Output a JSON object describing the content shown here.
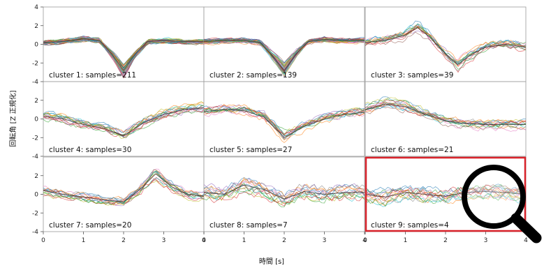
{
  "chart_data": {
    "type": "line",
    "layout": "3x3 grid of panels with shared axes",
    "xlabel": "時間 [s]",
    "ylabel": "回転角 [Z 正規化]",
    "xlim": [
      0,
      4
    ],
    "ylim": [
      -4,
      4
    ],
    "xticks": [
      "0",
      "1",
      "2",
      "3",
      "4"
    ],
    "yticks": [
      "-4",
      "-2",
      "0",
      "2",
      "4"
    ],
    "highlighted_panel": 9,
    "highlight_color": "#d9232b",
    "magnifier_icon": "magnifier-icon",
    "series_colors": [
      "#1f77b4",
      "#ff7f0e",
      "#2ca02c",
      "#d62728",
      "#9467bd",
      "#8c564b",
      "#e377c2",
      "#7f7f7f",
      "#bcbd22",
      "#17becf"
    ],
    "panels": [
      {
        "label": "cluster 1: samples=211",
        "mean": {
          "x": [
            0,
            0.5,
            1,
            1.4,
            1.7,
            2,
            2.3,
            2.6,
            3,
            3.5,
            4
          ],
          "y": [
            0.2,
            0.3,
            0.6,
            0.4,
            -1.0,
            -2.8,
            -1.0,
            0.3,
            0.4,
            0.3,
            0.3
          ]
        }
      },
      {
        "label": "cluster 2: samples=139",
        "mean": {
          "x": [
            0,
            0.5,
            1,
            1.4,
            1.7,
            2,
            2.3,
            2.6,
            3,
            3.5,
            4
          ],
          "y": [
            0.3,
            0.4,
            0.4,
            0.2,
            -1.2,
            -2.8,
            -1.0,
            0.3,
            0.5,
            0.4,
            0.4
          ]
        }
      },
      {
        "label": "cluster 3: samples=39",
        "mean": {
          "x": [
            0,
            0.5,
            1,
            1.3,
            1.6,
            2,
            2.3,
            2.6,
            3,
            3.5,
            4
          ],
          "y": [
            0.2,
            0.4,
            1.0,
            1.8,
            0.8,
            -1.0,
            -2.2,
            -1.2,
            -0.3,
            0.0,
            -0.3
          ]
        }
      },
      {
        "label": "cluster 4: samples=30",
        "mean": {
          "x": [
            0,
            0.5,
            1,
            1.5,
            2,
            2.5,
            3,
            3.5,
            4
          ],
          "y": [
            0.3,
            0.0,
            -0.6,
            -1.0,
            -1.8,
            -0.4,
            0.5,
            1.0,
            1.2
          ]
        }
      },
      {
        "label": "cluster 5: samples=27",
        "mean": {
          "x": [
            0,
            0.5,
            1,
            1.5,
            2,
            2.5,
            3,
            3.5,
            4
          ],
          "y": [
            0.8,
            1.0,
            0.9,
            0.2,
            -2.0,
            -0.8,
            0.0,
            0.5,
            0.7
          ]
        }
      },
      {
        "label": "cluster 6: samples=21",
        "mean": {
          "x": [
            0,
            0.5,
            1,
            1.5,
            2,
            2.5,
            3,
            3.5,
            4
          ],
          "y": [
            1.0,
            1.6,
            1.3,
            0.5,
            -0.2,
            -0.5,
            -0.6,
            -0.6,
            -0.6
          ]
        }
      },
      {
        "label": "cluster 7: samples=20",
        "mean": {
          "x": [
            0,
            0.5,
            1,
            1.5,
            2,
            2.4,
            2.8,
            3.2,
            3.6,
            4
          ],
          "y": [
            0.4,
            0.0,
            -0.3,
            -0.6,
            -0.8,
            0.5,
            2.2,
            0.8,
            0.0,
            -0.2
          ]
        }
      },
      {
        "label": "cluster 8: samples=7",
        "mean": {
          "x": [
            0,
            0.5,
            1,
            1.5,
            2,
            2.5,
            3,
            3.5,
            4
          ],
          "y": [
            0.2,
            0.0,
            1.0,
            0.5,
            -0.5,
            0.3,
            0.0,
            0.2,
            0.2
          ]
        }
      },
      {
        "label": "cluster 9: samples=4",
        "mean": {
          "x": [
            0,
            0.5,
            1,
            1.5,
            2,
            2.5,
            3,
            3.5,
            4
          ],
          "y": [
            0.0,
            -0.3,
            0.2,
            0.0,
            -0.2,
            0.2,
            0.3,
            0.2,
            0.0
          ]
        }
      }
    ]
  }
}
